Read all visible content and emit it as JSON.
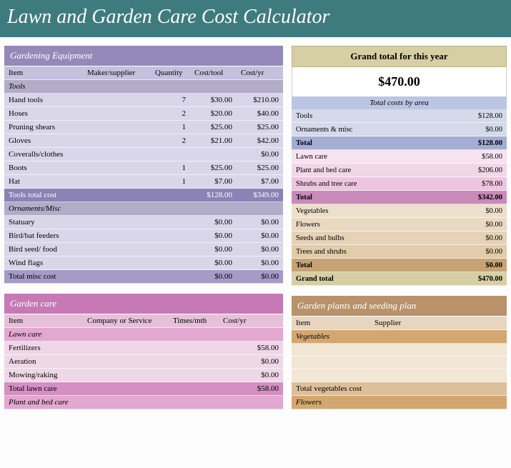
{
  "title": "Lawn and Garden Care Cost Calculator",
  "colors": {
    "title_bg": "#3d7b7f",
    "equip_header_bg": "#9489b8",
    "equip_th_bg": "#c5c0dd",
    "equip_sub_bg": "#b3acc9",
    "equip_row_bg": "#d9d6e9",
    "equip_total_bg": "#8b82b5",
    "equip_misc_total_bg": "#a59bc6",
    "care_header_bg": "#c779b5",
    "care_th_bg": "#e6c0db",
    "care_sub_bg": "#e2a8cf",
    "care_row_bg": "#f0d7e8",
    "care_total_bg": "#d48fc3",
    "grand_header_bg": "#d6cfa3",
    "area_header_bg": "#bcc5e2",
    "area_blue1": "#d5daea",
    "area_blue_total": "#a4aed4",
    "area_pink1": "#f2d7e9",
    "area_pink2": "#eec5e0",
    "area_pink_total": "#c98bb9",
    "area_tan1": "#ead9c2",
    "area_tan_total": "#c7a374",
    "seed_header_bg": "#b8926a",
    "seed_th_bg": "#e8d5bf",
    "seed_sub_bg": "#d4a770"
  },
  "equipment": {
    "title": "Gardening Equipment",
    "columns": [
      "Item",
      "Maker/supplier",
      "Quantity",
      "Cost/tool",
      "Cost/yr"
    ],
    "tools_header": "Tools",
    "tools_rows": [
      {
        "item": "Hand tools",
        "maker": "",
        "qty": "7",
        "cost_tool": "$30.00",
        "cost_yr": "$210.00"
      },
      {
        "item": "Hoses",
        "maker": "",
        "qty": "2",
        "cost_tool": "$20.00",
        "cost_yr": "$40.00"
      },
      {
        "item": "Pruning shears",
        "maker": "",
        "qty": "1",
        "cost_tool": "$25.00",
        "cost_yr": "$25.00"
      },
      {
        "item": "Gloves",
        "maker": "",
        "qty": "2",
        "cost_tool": "$21.00",
        "cost_yr": "$42.00"
      },
      {
        "item": "Coveralls/clothes",
        "maker": "",
        "qty": "",
        "cost_tool": "",
        "cost_yr": "$0.00"
      },
      {
        "item": "Boots",
        "maker": "",
        "qty": "1",
        "cost_tool": "$25.00",
        "cost_yr": "$25.00"
      },
      {
        "item": "Hat",
        "maker": "",
        "qty": "1",
        "cost_tool": "$7.00",
        "cost_yr": "$7.00"
      }
    ],
    "tools_total": {
      "label": "Tools total cost",
      "cost_tool": "$128.00",
      "cost_yr": "$349.00"
    },
    "ornaments_header": "Ornaments/Misc",
    "ornaments_rows": [
      {
        "item": "Statuary",
        "maker": "",
        "qty": "",
        "cost_tool": "$0.00",
        "cost_yr": "$0.00"
      },
      {
        "item": "Bird/bat feeders",
        "maker": "",
        "qty": "",
        "cost_tool": "$0.00",
        "cost_yr": "$0.00"
      },
      {
        "item": "Bird seed/ food",
        "maker": "",
        "qty": "",
        "cost_tool": "$0.00",
        "cost_yr": "$0.00"
      },
      {
        "item": "Wind flags",
        "maker": "",
        "qty": "",
        "cost_tool": "$0.00",
        "cost_yr": "$0.00"
      }
    ],
    "misc_total": {
      "label": "Total misc cost",
      "cost_tool": "$0.00",
      "cost_yr": "$0.00"
    }
  },
  "garden_care": {
    "title": "Garden care",
    "columns": [
      "Item",
      "Company or Service",
      "Times/mth",
      "Cost/yr"
    ],
    "lawn_header": "Lawn care",
    "lawn_rows": [
      {
        "item": "Fertilizers",
        "company": "",
        "times": "",
        "cost_yr": "$58.00"
      },
      {
        "item": "Aeration",
        "company": "",
        "times": "",
        "cost_yr": "$0.00"
      },
      {
        "item": "Mowing/raking",
        "company": "",
        "times": "",
        "cost_yr": "$0.00"
      }
    ],
    "lawn_total": {
      "label": "Total lawn care",
      "cost_yr": "$58.00"
    },
    "plant_header": "Plant and bed care"
  },
  "grand": {
    "title": "Grand total for this year",
    "value": "$470.00",
    "area_title": "Total costs by area",
    "rows": [
      {
        "label": "Tools",
        "val": "$128.00",
        "bg": "#d5daea"
      },
      {
        "label": "Ornaments & misc",
        "val": "$0.00",
        "bg": "#d5daea"
      },
      {
        "label": "Total",
        "val": "$128.00",
        "bg": "#a4aed4",
        "bold": true
      },
      {
        "label": "Lawn care",
        "val": "$58.00",
        "bg": "#f6e2f0"
      },
      {
        "label": "Plant and bed care",
        "val": "$206.00",
        "bg": "#f2d7e9"
      },
      {
        "label": "Shrubs and tree care",
        "val": "$78.00",
        "bg": "#eec5e0"
      },
      {
        "label": "Total",
        "val": "$342.00",
        "bg": "#c98bb9",
        "bold": true
      },
      {
        "label": "Vegetables",
        "val": "$0.00",
        "bg": "#ece0cc"
      },
      {
        "label": "Flowers",
        "val": "$0.00",
        "bg": "#ead9c2"
      },
      {
        "label": "Seeds and bulbs",
        "val": "$0.00",
        "bg": "#e6d2b6"
      },
      {
        "label": "Trees and shrubs",
        "val": "$0.00",
        "bg": "#e2cca9"
      },
      {
        "label": "Total",
        "val": "$0.00",
        "bg": "#c7a374",
        "bold": true
      },
      {
        "label": "Grand total",
        "val": "$470.00",
        "bg": "#d6cfa3",
        "bold": true
      }
    ]
  },
  "seeding": {
    "title": "Garden plants and seeding plan",
    "columns": [
      "Item",
      "Supplier"
    ],
    "veg_header": "Vegetables",
    "veg_total": "Total vegetables cost",
    "flowers_header": "Flowers"
  }
}
